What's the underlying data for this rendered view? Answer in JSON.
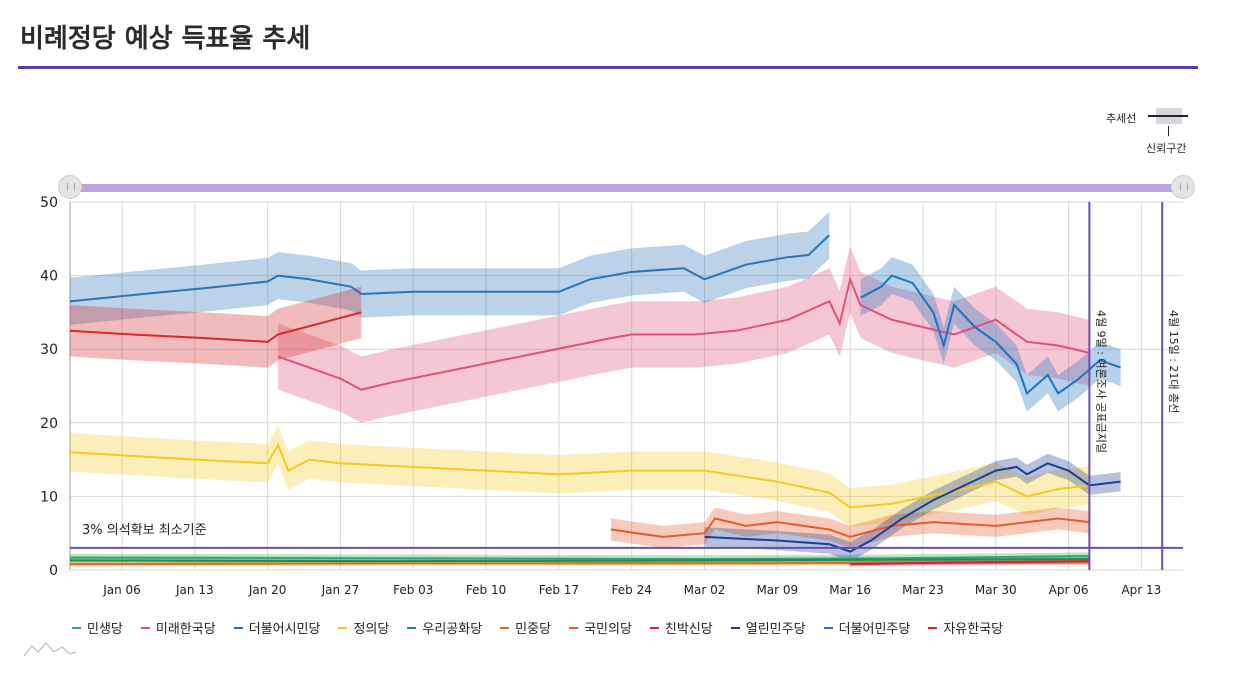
{
  "title": "비례정당 예상 득표율 추세",
  "trend_key": {
    "line_label": "추세선",
    "band_label": "신뢰구간"
  },
  "chart_data": {
    "type": "line",
    "title": "비례정당 예상 득표율 추세",
    "xlabel": "",
    "ylabel": "",
    "ylim": [
      0,
      50
    ],
    "yticks": [
      0,
      10,
      20,
      30,
      40,
      50
    ],
    "x_start": "2020-01-01",
    "x_end": "2020-04-17",
    "xticks": [
      {
        "date": "2020-01-06",
        "label": "Jan 06"
      },
      {
        "date": "2020-01-13",
        "label": "Jan 13"
      },
      {
        "date": "2020-01-20",
        "label": "Jan 20"
      },
      {
        "date": "2020-01-27",
        "label": "Jan 27"
      },
      {
        "date": "2020-02-03",
        "label": "Feb 03"
      },
      {
        "date": "2020-02-10",
        "label": "Feb 10"
      },
      {
        "date": "2020-02-17",
        "label": "Feb 17"
      },
      {
        "date": "2020-02-24",
        "label": "Feb 24"
      },
      {
        "date": "2020-03-02",
        "label": "Mar 02"
      },
      {
        "date": "2020-03-09",
        "label": "Mar 09"
      },
      {
        "date": "2020-03-16",
        "label": "Mar 16"
      },
      {
        "date": "2020-03-23",
        "label": "Mar 23"
      },
      {
        "date": "2020-03-30",
        "label": "Mar 30"
      },
      {
        "date": "2020-04-06",
        "label": "Apr 06"
      },
      {
        "date": "2020-04-13",
        "label": "Apr 13"
      }
    ],
    "threshold": {
      "value": 3,
      "label": "3% 의석확보 최소기준",
      "color": "#6a4db0"
    },
    "annotations": [
      {
        "date": "2020-04-08",
        "label": "4월 9일 : 여론조사 공표금지일",
        "color": "#6a4db0"
      },
      {
        "date": "2020-04-15",
        "label": "4월 15일 : 21대 총선",
        "color": "#6a4db0"
      }
    ],
    "grid": true,
    "legend_position": "bottom",
    "series": [
      {
        "name": "민생당",
        "color": "#33a66b",
        "band": 0.5,
        "points": [
          [
            "2020-01-01",
            1.7
          ],
          [
            "2020-02-01",
            1.6
          ],
          [
            "2020-03-01",
            1.5
          ],
          [
            "2020-03-20",
            1.6
          ],
          [
            "2020-04-08",
            1.9
          ]
        ]
      },
      {
        "name": "미래한국당",
        "color": "#e0507a",
        "band": 4.5,
        "points": [
          [
            "2020-01-21",
            29
          ],
          [
            "2020-01-24",
            27.5
          ],
          [
            "2020-01-27",
            26
          ],
          [
            "2020-01-29",
            24.5
          ],
          [
            "2020-02-01",
            25.5
          ],
          [
            "2020-02-08",
            27.5
          ],
          [
            "2020-02-15",
            29.5
          ],
          [
            "2020-02-22",
            31.5
          ],
          [
            "2020-02-24",
            32
          ],
          [
            "2020-03-01",
            32
          ],
          [
            "2020-03-05",
            32.5
          ],
          [
            "2020-03-10",
            34
          ],
          [
            "2020-03-14",
            36.5
          ],
          [
            "2020-03-15",
            33.5
          ],
          [
            "2020-03-16",
            39.5
          ],
          [
            "2020-03-17",
            36
          ],
          [
            "2020-03-20",
            34
          ],
          [
            "2020-03-23",
            33
          ],
          [
            "2020-03-26",
            32
          ],
          [
            "2020-03-30",
            34
          ],
          [
            "2020-04-02",
            31
          ],
          [
            "2020-04-05",
            30.5
          ],
          [
            "2020-04-08",
            29.5
          ]
        ]
      },
      {
        "name": "더불어시민당",
        "color": "#1c74c0",
        "band": 2.5,
        "points": [
          [
            "2020-03-17",
            37
          ],
          [
            "2020-03-19",
            38.5
          ],
          [
            "2020-03-20",
            40
          ],
          [
            "2020-03-22",
            39
          ],
          [
            "2020-03-24",
            35
          ],
          [
            "2020-03-25",
            30.5
          ],
          [
            "2020-03-26",
            36
          ],
          [
            "2020-03-28",
            33
          ],
          [
            "2020-03-30",
            31
          ],
          [
            "2020-04-01",
            28
          ],
          [
            "2020-04-02",
            24
          ],
          [
            "2020-04-04",
            26.5
          ],
          [
            "2020-04-05",
            24
          ],
          [
            "2020-04-07",
            26
          ],
          [
            "2020-04-09",
            28.5
          ],
          [
            "2020-04-11",
            27.5
          ]
        ]
      },
      {
        "name": "정의당",
        "color": "#f5c921",
        "band": 2.6,
        "points": [
          [
            "2020-01-01",
            16
          ],
          [
            "2020-01-13",
            15
          ],
          [
            "2020-01-20",
            14.5
          ],
          [
            "2020-01-21",
            17
          ],
          [
            "2020-01-22",
            13.5
          ],
          [
            "2020-01-24",
            15
          ],
          [
            "2020-01-27",
            14.5
          ],
          [
            "2020-02-03",
            14
          ],
          [
            "2020-02-17",
            13
          ],
          [
            "2020-02-24",
            13.5
          ],
          [
            "2020-03-02",
            13.5
          ],
          [
            "2020-03-09",
            12
          ],
          [
            "2020-03-14",
            10.5
          ],
          [
            "2020-03-16",
            8.5
          ],
          [
            "2020-03-20",
            9
          ],
          [
            "2020-03-27",
            11
          ],
          [
            "2020-03-30",
            12
          ],
          [
            "2020-04-02",
            10
          ],
          [
            "2020-04-05",
            11
          ],
          [
            "2020-04-08",
            11.5
          ]
        ]
      },
      {
        "name": "우리공화당",
        "color": "#1d8f4a",
        "band": 0.3,
        "points": [
          [
            "2020-01-01",
            1.3
          ],
          [
            "2020-02-01",
            1.2
          ],
          [
            "2020-03-01",
            1.3
          ],
          [
            "2020-04-08",
            1.5
          ]
        ]
      },
      {
        "name": "민중당",
        "color": "#e06d1e",
        "band": 0.3,
        "points": [
          [
            "2020-01-01",
            0.8
          ],
          [
            "2020-02-01",
            0.9
          ],
          [
            "2020-03-01",
            0.9
          ],
          [
            "2020-04-08",
            1.0
          ]
        ]
      },
      {
        "name": "국민의당",
        "color": "#e55b2a",
        "band": 1.5,
        "points": [
          [
            "2020-02-22",
            5.5
          ],
          [
            "2020-02-27",
            4.5
          ],
          [
            "2020-03-02",
            5
          ],
          [
            "2020-03-03",
            7
          ],
          [
            "2020-03-06",
            6
          ],
          [
            "2020-03-09",
            6.5
          ],
          [
            "2020-03-14",
            5.5
          ],
          [
            "2020-03-16",
            4.5
          ],
          [
            "2020-03-20",
            6
          ],
          [
            "2020-03-24",
            6.5
          ],
          [
            "2020-03-30",
            6
          ],
          [
            "2020-04-02",
            6.5
          ],
          [
            "2020-04-05",
            7
          ],
          [
            "2020-04-08",
            6.5
          ]
        ]
      },
      {
        "name": "친박신당",
        "color": "#d0203c",
        "band": 0.3,
        "points": [
          [
            "2020-03-16",
            0.8
          ],
          [
            "2020-03-25",
            1
          ],
          [
            "2020-04-01",
            1.1
          ],
          [
            "2020-04-08",
            1.2
          ]
        ]
      },
      {
        "name": "열린민주당",
        "color": "#1b3f95",
        "band": 1.3,
        "points": [
          [
            "2020-03-02",
            4.5
          ],
          [
            "2020-03-09",
            4
          ],
          [
            "2020-03-14",
            3.5
          ],
          [
            "2020-03-16",
            2.5
          ],
          [
            "2020-03-18",
            4
          ],
          [
            "2020-03-21",
            7
          ],
          [
            "2020-03-24",
            9.5
          ],
          [
            "2020-03-27",
            11.5
          ],
          [
            "2020-03-30",
            13.5
          ],
          [
            "2020-04-01",
            14
          ],
          [
            "2020-04-02",
            13
          ],
          [
            "2020-04-04",
            14.5
          ],
          [
            "2020-04-06",
            13.5
          ],
          [
            "2020-04-08",
            11.5
          ],
          [
            "2020-04-11",
            12
          ]
        ]
      },
      {
        "name": "더불어민주당",
        "color": "#2a74b6",
        "band": 3.2,
        "points": [
          [
            "2020-01-01",
            36.5
          ],
          [
            "2020-01-08",
            37.5
          ],
          [
            "2020-01-14",
            38.3
          ],
          [
            "2020-01-20",
            39.2
          ],
          [
            "2020-01-21",
            40
          ],
          [
            "2020-01-24",
            39.5
          ],
          [
            "2020-01-28",
            38.5
          ],
          [
            "2020-01-29",
            37.5
          ],
          [
            "2020-02-03",
            37.8
          ],
          [
            "2020-02-10",
            37.8
          ],
          [
            "2020-02-17",
            37.8
          ],
          [
            "2020-02-20",
            39.5
          ],
          [
            "2020-02-24",
            40.5
          ],
          [
            "2020-02-29",
            41
          ],
          [
            "2020-03-02",
            39.5
          ],
          [
            "2020-03-06",
            41.5
          ],
          [
            "2020-03-10",
            42.5
          ],
          [
            "2020-03-12",
            42.8
          ],
          [
            "2020-03-14",
            45.5
          ]
        ]
      },
      {
        "name": "자유한국당",
        "color": "#d62a2a",
        "band": 3.5,
        "points": [
          [
            "2020-01-01",
            32.5
          ],
          [
            "2020-01-07",
            32
          ],
          [
            "2020-01-14",
            31.5
          ],
          [
            "2020-01-20",
            31
          ],
          [
            "2020-01-21",
            32
          ],
          [
            "2020-01-25",
            33.5
          ],
          [
            "2020-01-29",
            35
          ]
        ]
      }
    ]
  },
  "colors": {
    "accent": "#5b3fa6",
    "slider": "#b9a5dc",
    "grid": "#d8d8d8"
  }
}
